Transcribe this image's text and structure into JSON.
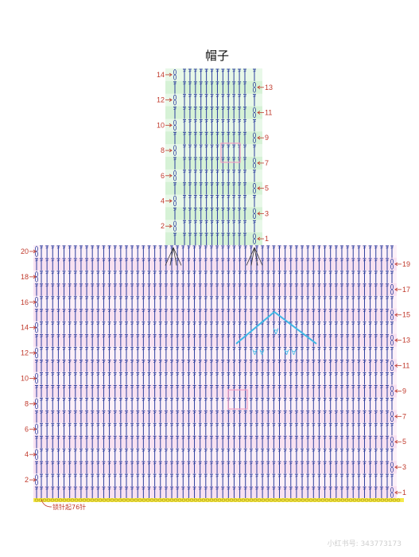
{
  "title": "帽子",
  "hood": {
    "rows": 14,
    "stitches": 12,
    "left_labels": [
      14,
      12,
      10,
      8,
      6,
      4,
      2
    ],
    "right_labels": [
      13,
      11,
      9,
      7,
      5,
      3,
      1
    ],
    "fill_color": "#d6f2d6"
  },
  "body": {
    "rows": 20,
    "stitches": 62,
    "left_labels": [
      20,
      18,
      16,
      14,
      12,
      10,
      8,
      6,
      4,
      2
    ],
    "right_labels": [
      19,
      17,
      15,
      13,
      11,
      9,
      7,
      5,
      3,
      1
    ],
    "fill_color": "#f8e1f1"
  },
  "foundation_note": "锁针起76针",
  "stitch_color": "#2c3e9e",
  "label_color": "#c0392b",
  "watermark": "小红书号: 343773173"
}
